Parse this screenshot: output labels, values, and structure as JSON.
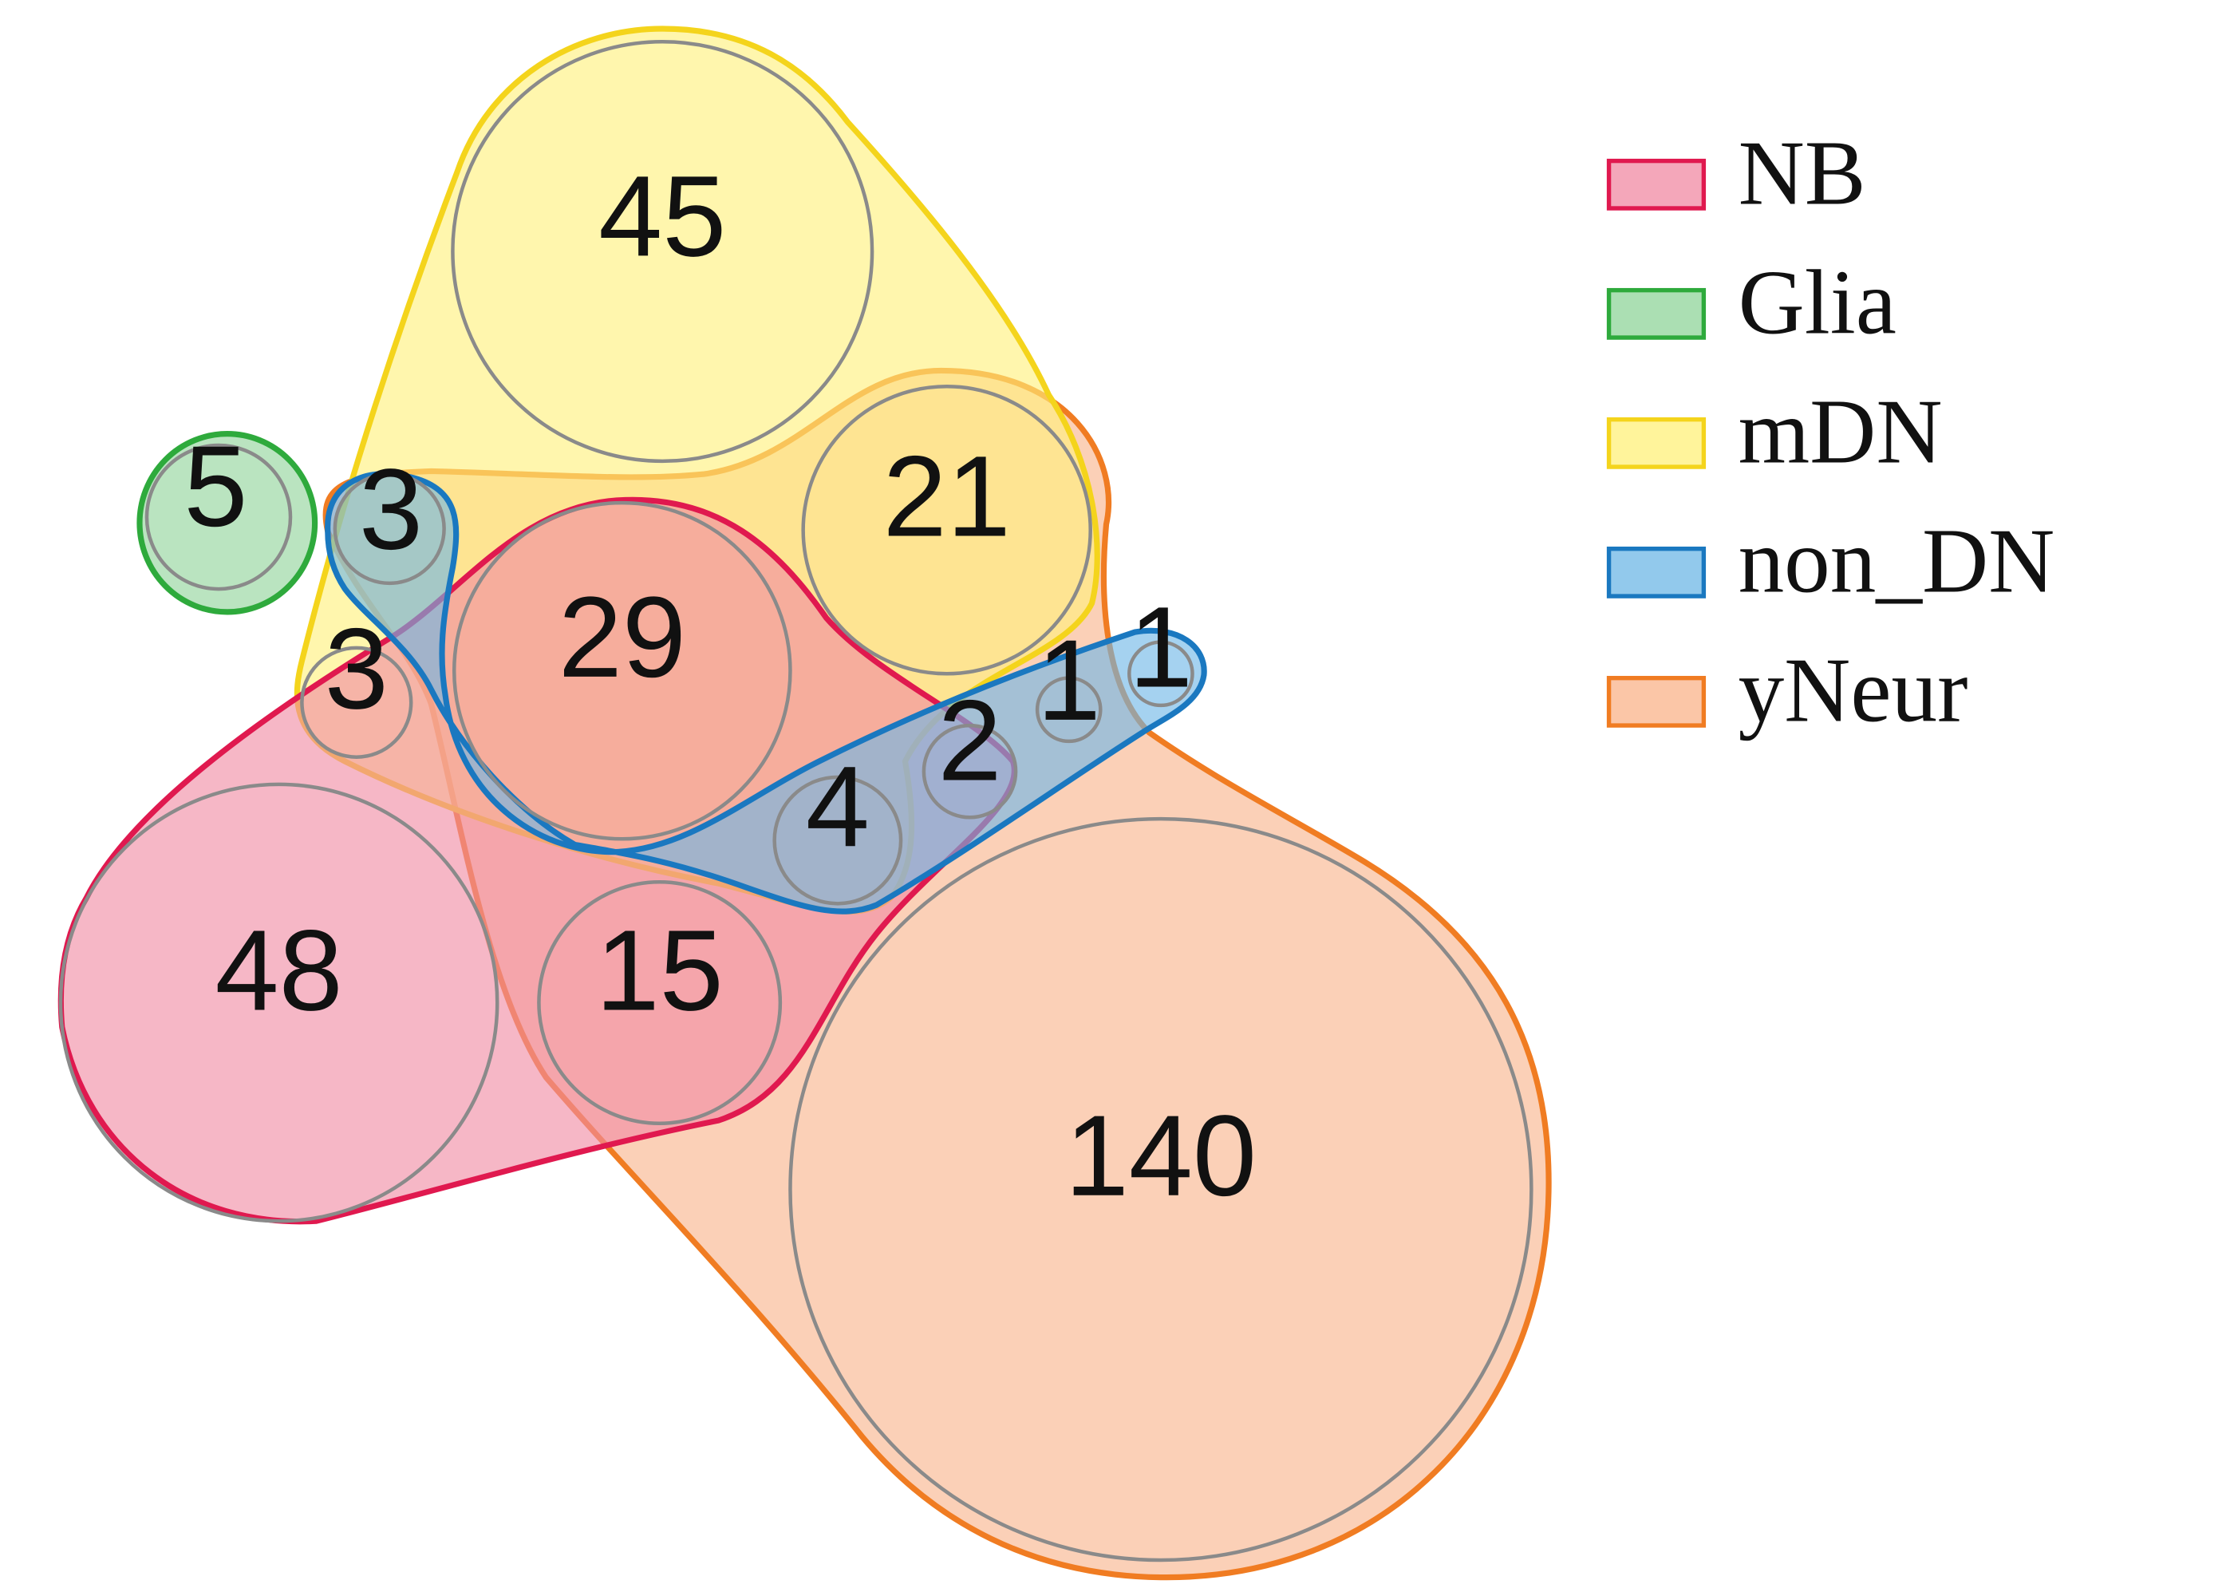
{
  "sets": [
    {
      "key": "nb",
      "name": "NB",
      "fill": "#f08aa3",
      "stroke": "#e0194f"
    },
    {
      "key": "glia",
      "name": "Glia",
      "fill": "#8fd49a",
      "stroke": "#2eaa3c"
    },
    {
      "key": "mdn",
      "name": "mDN",
      "fill": "#fff07a",
      "stroke": "#f4d41c"
    },
    {
      "key": "nondn",
      "name": "non_DN",
      "fill": "#6db7e6",
      "stroke": "#1a78c0"
    },
    {
      "key": "yneur",
      "name": "yNeur",
      "fill": "#f9b38a",
      "stroke": "#f07c22"
    }
  ],
  "counts": [
    {
      "id": "mdn-only",
      "sets": [
        "mDN"
      ],
      "value": "45"
    },
    {
      "id": "glia-only",
      "sets": [
        "Glia"
      ],
      "value": "5"
    },
    {
      "id": "mdn-nondn-yneur",
      "sets": [
        "mDN",
        "non_DN",
        "yNeur"
      ],
      "value": "3"
    },
    {
      "id": "mdn-yneur",
      "sets": [
        "mDN",
        "yNeur"
      ],
      "value": "21"
    },
    {
      "id": "nb-mdn-nondn-yneur",
      "sets": [
        "NB",
        "mDN",
        "non_DN",
        "yNeur"
      ],
      "value": "29"
    },
    {
      "id": "mdn-yneur-small",
      "sets": [
        "mDN",
        "yNeur"
      ],
      "value": "3"
    },
    {
      "id": "nondn-yneur",
      "sets": [
        "non_DN",
        "yNeur"
      ],
      "value": "1"
    },
    {
      "id": "nondn-only",
      "sets": [
        "non_DN"
      ],
      "value": "1"
    },
    {
      "id": "nb-nondn-yneur",
      "sets": [
        "NB",
        "non_DN",
        "yNeur"
      ],
      "value": "2"
    },
    {
      "id": "nb-mdn-nondn-yneur-lower",
      "sets": [
        "NB",
        "mDN",
        "non_DN",
        "yNeur"
      ],
      "value": "4"
    },
    {
      "id": "nb-only",
      "sets": [
        "NB"
      ],
      "value": "48"
    },
    {
      "id": "nb-yneur",
      "sets": [
        "NB",
        "yNeur"
      ],
      "value": "15"
    },
    {
      "id": "yneur-only",
      "sets": [
        "yNeur"
      ],
      "value": "140"
    }
  ]
}
